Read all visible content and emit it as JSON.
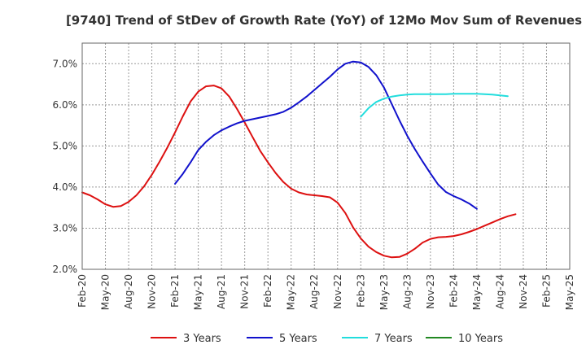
{
  "chart_data": {
    "type": "line",
    "title": "[9740]  Trend of StDev of Growth Rate (YoY) of 12Mo Mov Sum of Revenues",
    "xlabel": "",
    "ylabel": "",
    "ylim": [
      2.0,
      7.5
    ],
    "yticks": [
      2.0,
      3.0,
      4.0,
      5.0,
      6.0,
      7.0
    ],
    "ytick_labels": [
      "2.0%",
      "3.0%",
      "4.0%",
      "5.0%",
      "6.0%",
      "7.0%"
    ],
    "x_tick_labels": [
      "Feb-20",
      "May-20",
      "Aug-20",
      "Nov-20",
      "Feb-21",
      "May-21",
      "Aug-21",
      "Nov-21",
      "Feb-22",
      "May-22",
      "Aug-22",
      "Nov-22",
      "Feb-23",
      "May-23",
      "Aug-23",
      "Nov-23",
      "Feb-24",
      "May-24",
      "Aug-24",
      "Nov-24",
      "Feb-25",
      "May-25"
    ],
    "grid": true,
    "legend_position": "bottom",
    "series": [
      {
        "name": "3 Years",
        "color": "#dd1111",
        "start_index": 0,
        "values": [
          3.87,
          3.8,
          3.7,
          3.58,
          3.52,
          3.54,
          3.64,
          3.8,
          4.02,
          4.3,
          4.62,
          4.96,
          5.33,
          5.72,
          6.08,
          6.32,
          6.45,
          6.47,
          6.4,
          6.2,
          5.9,
          5.57,
          5.22,
          4.88,
          4.6,
          4.34,
          4.12,
          3.96,
          3.87,
          3.82,
          3.8,
          3.78,
          3.75,
          3.62,
          3.37,
          3.02,
          2.75,
          2.55,
          2.42,
          2.33,
          2.29,
          2.3,
          2.38,
          2.5,
          2.65,
          2.74,
          2.78,
          2.79,
          2.81,
          2.85,
          2.91,
          2.98,
          3.06,
          3.14,
          3.22,
          3.29,
          3.34
        ]
      },
      {
        "name": "5 Years",
        "color": "#1111cc",
        "start_index": 12,
        "values": [
          4.08,
          4.32,
          4.6,
          4.9,
          5.1,
          5.26,
          5.38,
          5.47,
          5.55,
          5.61,
          5.65,
          5.69,
          5.73,
          5.77,
          5.83,
          5.93,
          6.06,
          6.2,
          6.36,
          6.52,
          6.68,
          6.86,
          7.0,
          7.05,
          7.03,
          6.92,
          6.72,
          6.42,
          6.02,
          5.62,
          5.25,
          4.92,
          4.62,
          4.33,
          4.06,
          3.88,
          3.78,
          3.7,
          3.6,
          3.47
        ]
      },
      {
        "name": "7 Years",
        "color": "#22dddd",
        "start_index": 36,
        "values": [
          5.71,
          5.92,
          6.07,
          6.15,
          6.2,
          6.23,
          6.25,
          6.26,
          6.26,
          6.26,
          6.26,
          6.26,
          6.27,
          6.27,
          6.27,
          6.27,
          6.26,
          6.25,
          6.23,
          6.21
        ]
      },
      {
        "name": "10 Years",
        "color": "#228822",
        "start_index": 0,
        "values": []
      }
    ]
  }
}
